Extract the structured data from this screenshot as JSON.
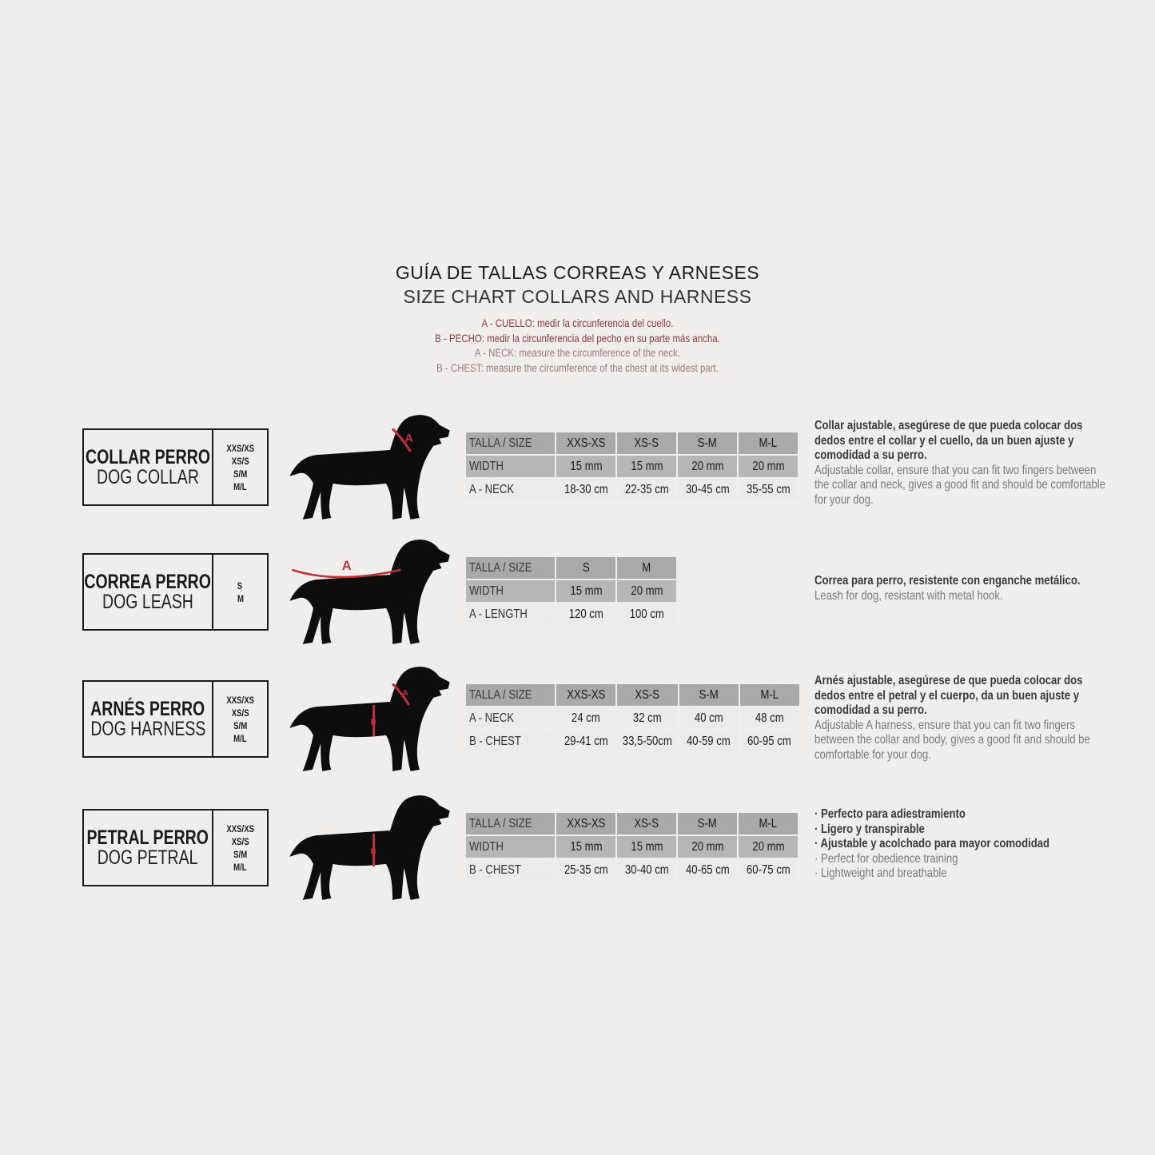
{
  "header": {
    "title": "GUÍA DE TALLAS CORREAS Y ARNESES",
    "subtitle": "SIZE CHART COLLARS AND HARNESS",
    "notes": [
      "A - CUELLO: medir la circunferencia del cuello.",
      "B - PECHO: medir la circunferencia del pecho en su parte más ancha.",
      "A - NECK: measure the circumference of the neck.",
      "B - CHEST: measure the circumference of the chest at its widest part."
    ]
  },
  "colors": {
    "background": "#f0eeed",
    "accent_red": "#c0303a",
    "note_red": "#8a3a3e",
    "header_gray": "#a9a9a9",
    "row_gray": "#b6b6b6",
    "row_light": "#ebebeb"
  },
  "products": [
    {
      "name_es": "COLLAR PERRO",
      "name_en": "DOG COLLAR",
      "sizes": [
        "XXS/XS",
        "XS/S",
        "S/M",
        "M/L"
      ],
      "table": {
        "headers": [
          "TALLA /  SIZE",
          "XXS-XS",
          "XS-S",
          "S-M",
          "M-L"
        ],
        "rows": [
          [
            "WIDTH",
            "15 mm",
            "15 mm",
            "20 mm",
            "20 mm"
          ],
          [
            "A - NECK",
            "18-30 cm",
            "22-35 cm",
            "30-45 cm",
            "35-55 cm"
          ]
        ]
      },
      "desc_es": [
        "Collar ajustable, asegúrese de que pueda colocar dos",
        "dedos entre el collar y el cuello, da un buen ajuste y",
        "comodidad a su perro."
      ],
      "desc_en": [
        "Adjustable collar, ensure that you can fit two fingers between",
        "the collar and neck, gives a good fit and should be comfortable",
        "for your dog."
      ]
    },
    {
      "name_es": "CORREA PERRO",
      "name_en": "DOG LEASH",
      "sizes": [
        "S",
        "M"
      ],
      "table": {
        "headers": [
          "TALLA /  SIZE",
          "S",
          "M"
        ],
        "rows": [
          [
            "WIDTH",
            "15 mm",
            "20 mm"
          ],
          [
            "A - LENGTH",
            "120 cm",
            "100 cm"
          ]
        ]
      },
      "desc_es": [
        "Correa para perro, resistente con enganche metálico."
      ],
      "desc_en": [
        "Leash for dog, resistant with metal hook."
      ]
    },
    {
      "name_es": "ARNÉS PERRO",
      "name_en": "DOG HARNESS",
      "sizes": [
        "XXS/XS",
        "XS/S",
        "S/M",
        "M/L"
      ],
      "table": {
        "headers": [
          "TALLA /  SIZE",
          "XXS-XS",
          "XS-S",
          "S-M",
          "M-L"
        ],
        "rows": [
          [
            "A - NECK",
            "24 cm",
            "32 cm",
            "40 cm",
            "48 cm"
          ],
          [
            "B - CHEST",
            "29-41 cm",
            "33,5-50cm",
            "40-59 cm",
            "60-95 cm"
          ]
        ]
      },
      "desc_es": [
        "Arnés ajustable, asegúrese de que pueda colocar dos",
        "dedos entre el petral y el cuerpo, da un buen ajuste y",
        "comodidad a su perro."
      ],
      "desc_en": [
        "Adjustable A harness, ensure that you can fit two fingers",
        "between the collar and body, gives a good fit and should be",
        "comfortable for your dog."
      ]
    },
    {
      "name_es": "PETRAL PERRO",
      "name_en": "DOG PETRAL",
      "sizes": [
        "XXS/XS",
        "XS/S",
        "S/M",
        "M/L"
      ],
      "table": {
        "headers": [
          "TALLA /  SIZE",
          "XXS-XS",
          "XS-S",
          "S-M",
          "M-L"
        ],
        "rows": [
          [
            "WIDTH",
            "15 mm",
            "15 mm",
            "20 mm",
            "20 mm"
          ],
          [
            "B - CHEST",
            "25-35 cm",
            "30-40 cm",
            "40-65 cm",
            "60-75 cm"
          ]
        ]
      },
      "desc_es": [
        "· Perfecto para adiestramiento",
        "· Ligero y transpirable",
        "· Ajustable y acolchado para mayor comodidad"
      ],
      "desc_en": [
        "· Perfect for obedience training",
        "· Lightweight and breathable"
      ]
    }
  ],
  "markers": [
    "A",
    "A",
    "A",
    "B"
  ]
}
